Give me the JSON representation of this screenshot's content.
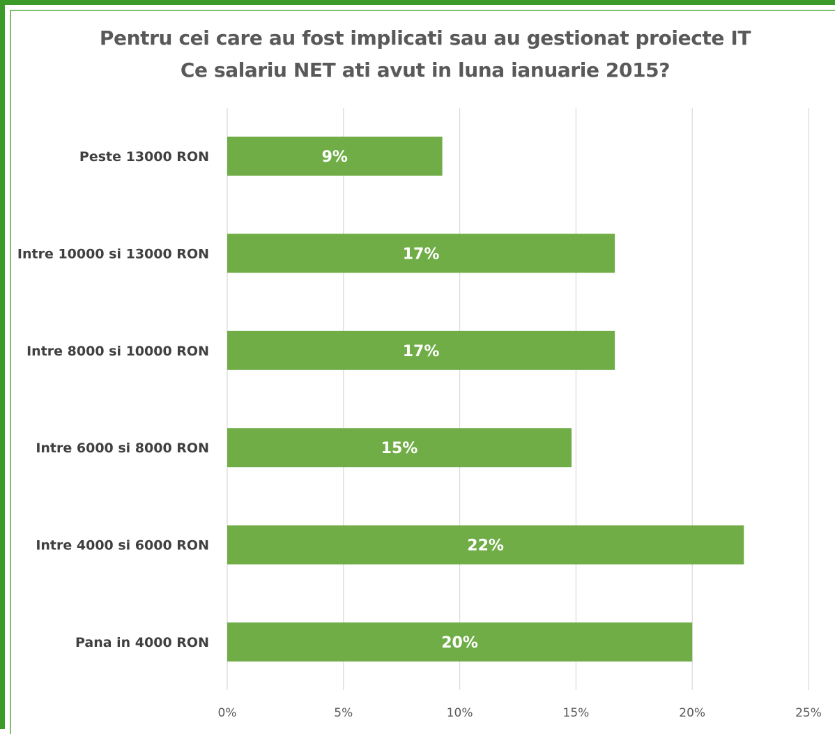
{
  "chart_data": {
    "type": "bar",
    "orientation": "horizontal",
    "title": [
      "Pentru cei care au fost implicati sau au gestionat proiecte IT",
      "Ce salariu NET ati avut in luna ianuarie 2015?"
    ],
    "categories": [
      "Peste 13000  RON",
      "Intre 10000 si 13000 RON",
      "Intre 8000 si 10000 RON",
      "Intre 6000 si 8000 RON",
      "Intre 4000 si 6000 RON",
      "Pana in 4000 RON"
    ],
    "values": [
      9.25,
      16.67,
      16.67,
      14.81,
      22.22,
      20.0
    ],
    "data_labels": [
      "9%",
      "17%",
      "17%",
      "15%",
      "22%",
      "20%"
    ],
    "xlim": [
      0,
      25
    ],
    "xticks": [
      "0%",
      "5%",
      "10%",
      "15%",
      "20%",
      "25%"
    ],
    "xlabel": "",
    "ylabel": "",
    "grid": "vertical",
    "bar_color": "#70ad47",
    "grid_color": "#d9d9d9",
    "border_color": "#3c9a28"
  }
}
